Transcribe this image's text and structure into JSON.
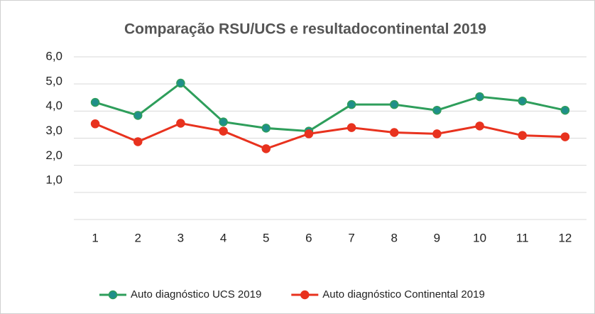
{
  "chart_data": {
    "type": "line",
    "title": "Comparação RSU/UCS e resultadocontinental 2019",
    "categories": [
      "1",
      "2",
      "3",
      "4",
      "5",
      "6",
      "7",
      "8",
      "9",
      "10",
      "11",
      "12"
    ],
    "series": [
      {
        "name": "Auto diagnóstico UCS 2019",
        "color": "#2e9e5b",
        "marker_color": "#1f8f8a",
        "values": [
          4.32,
          3.84,
          5.03,
          3.6,
          3.37,
          3.26,
          4.24,
          4.24,
          4.03,
          4.53,
          4.37,
          4.03
        ]
      },
      {
        "name": "Auto diagnóstico Continental 2019",
        "color": "#e8321e",
        "marker_color": "#e8321e",
        "values": [
          3.53,
          2.87,
          3.55,
          3.26,
          2.61,
          3.16,
          3.39,
          3.21,
          3.16,
          3.45,
          3.1,
          3.05
        ]
      }
    ],
    "ylim": [
      0,
      6
    ],
    "yticks": [
      {
        "value": 1,
        "label": "1,0"
      },
      {
        "value": 2,
        "label": "2,0"
      },
      {
        "value": 3,
        "label": "3,0"
      },
      {
        "value": 4,
        "label": "4,0"
      },
      {
        "value": 5,
        "label": "5,0"
      },
      {
        "value": 6,
        "label": "6,0"
      }
    ],
    "grid": true,
    "legend": "bottom"
  }
}
